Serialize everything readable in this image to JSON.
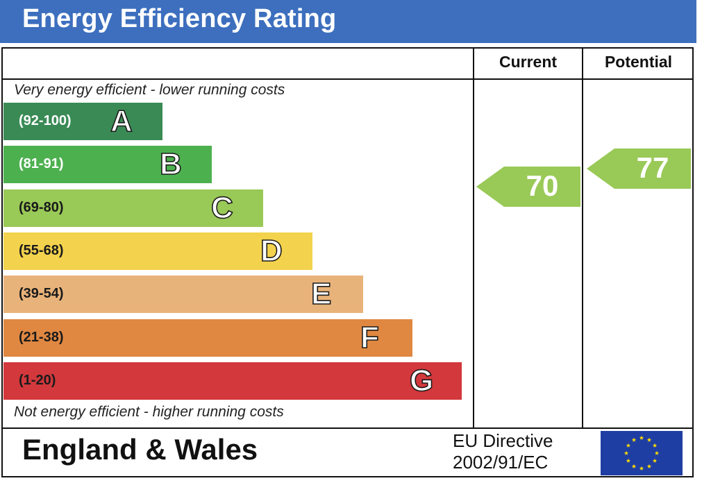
{
  "title": "Energy Efficiency Rating",
  "columns": {
    "current": "Current",
    "potential": "Potential"
  },
  "top_note": "Very energy efficient - lower running costs",
  "bottom_note": "Not energy efficient - higher running costs",
  "footer": {
    "region": "England & Wales",
    "directive_line1": "EU Directive",
    "directive_line2": "2002/91/EC"
  },
  "chart_data": {
    "type": "bar",
    "bands": [
      {
        "letter": "A",
        "range": "(92-100)",
        "color": "#3a8a55",
        "range_color": "#ffffff"
      },
      {
        "letter": "B",
        "range": "(81-91)",
        "color": "#4db04f",
        "range_color": "#ffffff"
      },
      {
        "letter": "C",
        "range": "(69-80)",
        "color": "#99c957",
        "range_color": "#1a1a1a"
      },
      {
        "letter": "D",
        "range": "(55-68)",
        "color": "#f3d24d",
        "range_color": "#1a1a1a"
      },
      {
        "letter": "E",
        "range": "(39-54)",
        "color": "#e8b37a",
        "range_color": "#1a1a1a"
      },
      {
        "letter": "F",
        "range": "(21-38)",
        "color": "#e08842",
        "range_color": "#1a1a1a"
      },
      {
        "letter": "G",
        "range": "(1-20)",
        "color": "#d2383c",
        "range_color": "#1a1a1a"
      }
    ],
    "current": {
      "value": 70,
      "band": "C",
      "color": "#99c957"
    },
    "potential": {
      "value": 77,
      "band": "C",
      "color": "#99c957"
    }
  }
}
